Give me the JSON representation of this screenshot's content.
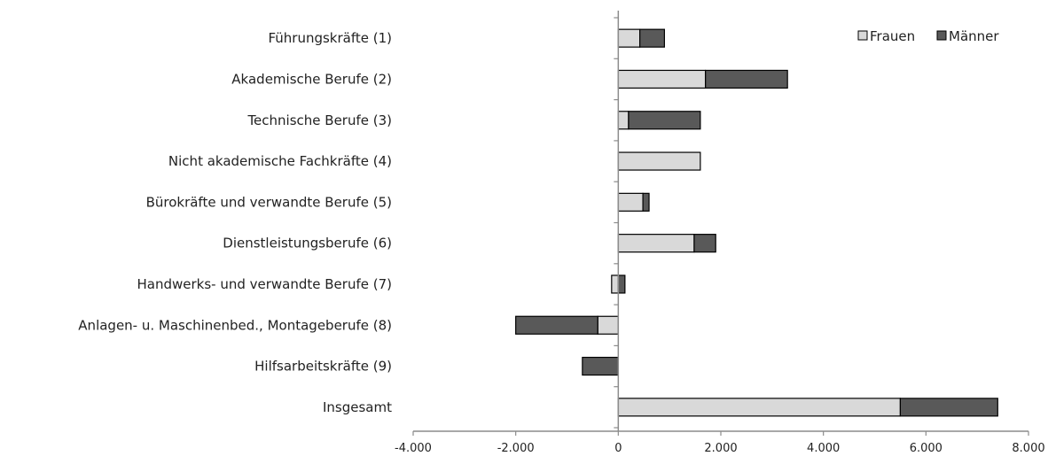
{
  "chart_data": {
    "type": "bar",
    "orientation": "horizontal",
    "stacked": true,
    "categories": [
      "Führungskräfte (1)",
      "Akademische Berufe (2)",
      "Technische Berufe (3)",
      "Nicht akademische Fachkräfte (4)",
      "Bürokräfte und verwandte Berufe (5)",
      "Dienstleistungsberufe  (6)",
      "Handwerks- und verwandte Berufe (7)",
      "Anlagen- u. Maschinenbed.,  Montageberufe (8)",
      "Hilfsarbeitskräfte (9)",
      "Insgesamt"
    ],
    "series": [
      {
        "name": "Frauen",
        "color": "#d9d9d9",
        "values": [
          420,
          1700,
          200,
          1600,
          480,
          1480,
          -130,
          -400,
          0,
          5500
        ]
      },
      {
        "name": "Männer",
        "color": "#595959",
        "values": [
          480,
          1600,
          1400,
          0,
          120,
          420,
          130,
          -1600,
          -700,
          1900
        ]
      }
    ],
    "xlim": [
      -4000,
      8000
    ],
    "xticks": [
      -4000,
      -2000,
      0,
      2000,
      4000,
      6000,
      8000
    ],
    "xtick_labels": [
      "-4.000",
      "-2.000",
      "0",
      "2.000",
      "4.000",
      "6.000",
      "8.000"
    ],
    "title": "",
    "xlabel": "",
    "ylabel": "",
    "legend": {
      "position": "top-right",
      "labels": [
        "Frauen",
        "Männer"
      ]
    },
    "grid": false
  }
}
